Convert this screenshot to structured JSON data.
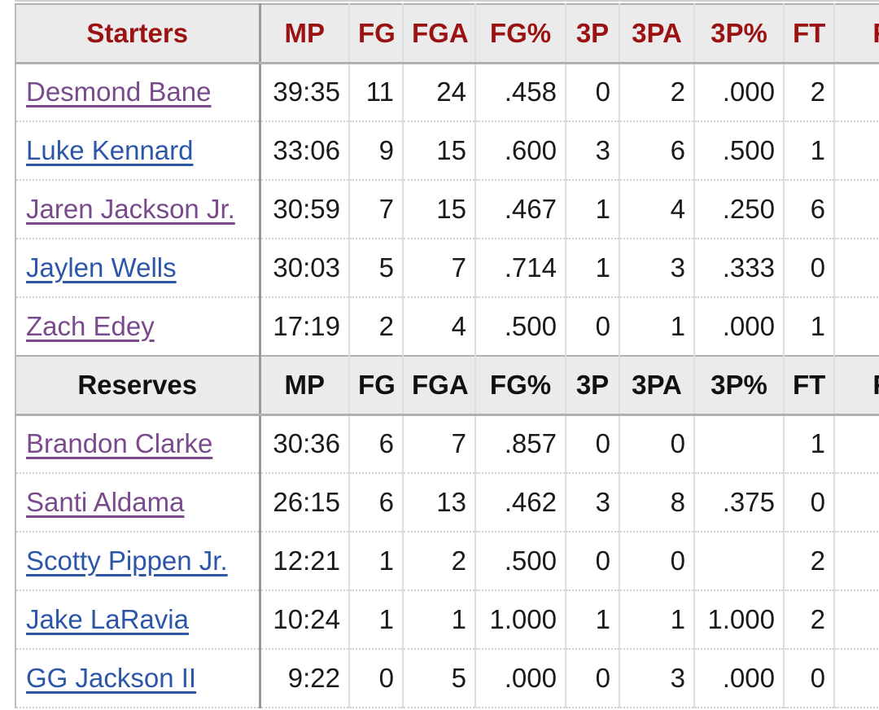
{
  "columns": [
    "MP",
    "FG",
    "FGA",
    "FG%",
    "3P",
    "3PA",
    "3P%",
    "FT",
    "FT"
  ],
  "sections": [
    {
      "title": "Starters",
      "players": [
        {
          "name": "Desmond Bane",
          "visited": true,
          "stats": [
            "39:35",
            "11",
            "24",
            ".458",
            "0",
            "2",
            ".000",
            "2",
            ""
          ]
        },
        {
          "name": "Luke Kennard",
          "visited": false,
          "stats": [
            "33:06",
            "9",
            "15",
            ".600",
            "3",
            "6",
            ".500",
            "1",
            ""
          ]
        },
        {
          "name": "Jaren Jackson Jr.",
          "visited": true,
          "stats": [
            "30:59",
            "7",
            "15",
            ".467",
            "1",
            "4",
            ".250",
            "6",
            ""
          ]
        },
        {
          "name": "Jaylen Wells",
          "visited": false,
          "stats": [
            "30:03",
            "5",
            "7",
            ".714",
            "1",
            "3",
            ".333",
            "0",
            ""
          ]
        },
        {
          "name": "Zach Edey",
          "visited": true,
          "stats": [
            "17:19",
            "2",
            "4",
            ".500",
            "0",
            "1",
            ".000",
            "1",
            ""
          ]
        }
      ]
    },
    {
      "title": "Reserves",
      "players": [
        {
          "name": "Brandon Clarke",
          "visited": true,
          "stats": [
            "30:36",
            "6",
            "7",
            ".857",
            "0",
            "0",
            "",
            "1",
            ""
          ]
        },
        {
          "name": "Santi Aldama",
          "visited": true,
          "stats": [
            "26:15",
            "6",
            "13",
            ".462",
            "3",
            "8",
            ".375",
            "0",
            ""
          ]
        },
        {
          "name": "Scotty Pippen Jr.",
          "visited": false,
          "stats": [
            "12:21",
            "1",
            "2",
            ".500",
            "0",
            "0",
            "",
            "2",
            ""
          ]
        },
        {
          "name": "Jake LaRavia",
          "visited": false,
          "stats": [
            "10:24",
            "1",
            "1",
            "1.000",
            "1",
            "1",
            "1.000",
            "2",
            ""
          ]
        },
        {
          "name": "GG Jackson II",
          "visited": false,
          "stats": [
            "9:22",
            "0",
            "5",
            ".000",
            "0",
            "3",
            ".000",
            "0",
            ""
          ]
        }
      ]
    }
  ],
  "colors": {
    "header_accent": "#9a1212",
    "visited_link": "#7a4b8c",
    "link": "#2c56a8",
    "header_bg": "#ebebeb"
  }
}
